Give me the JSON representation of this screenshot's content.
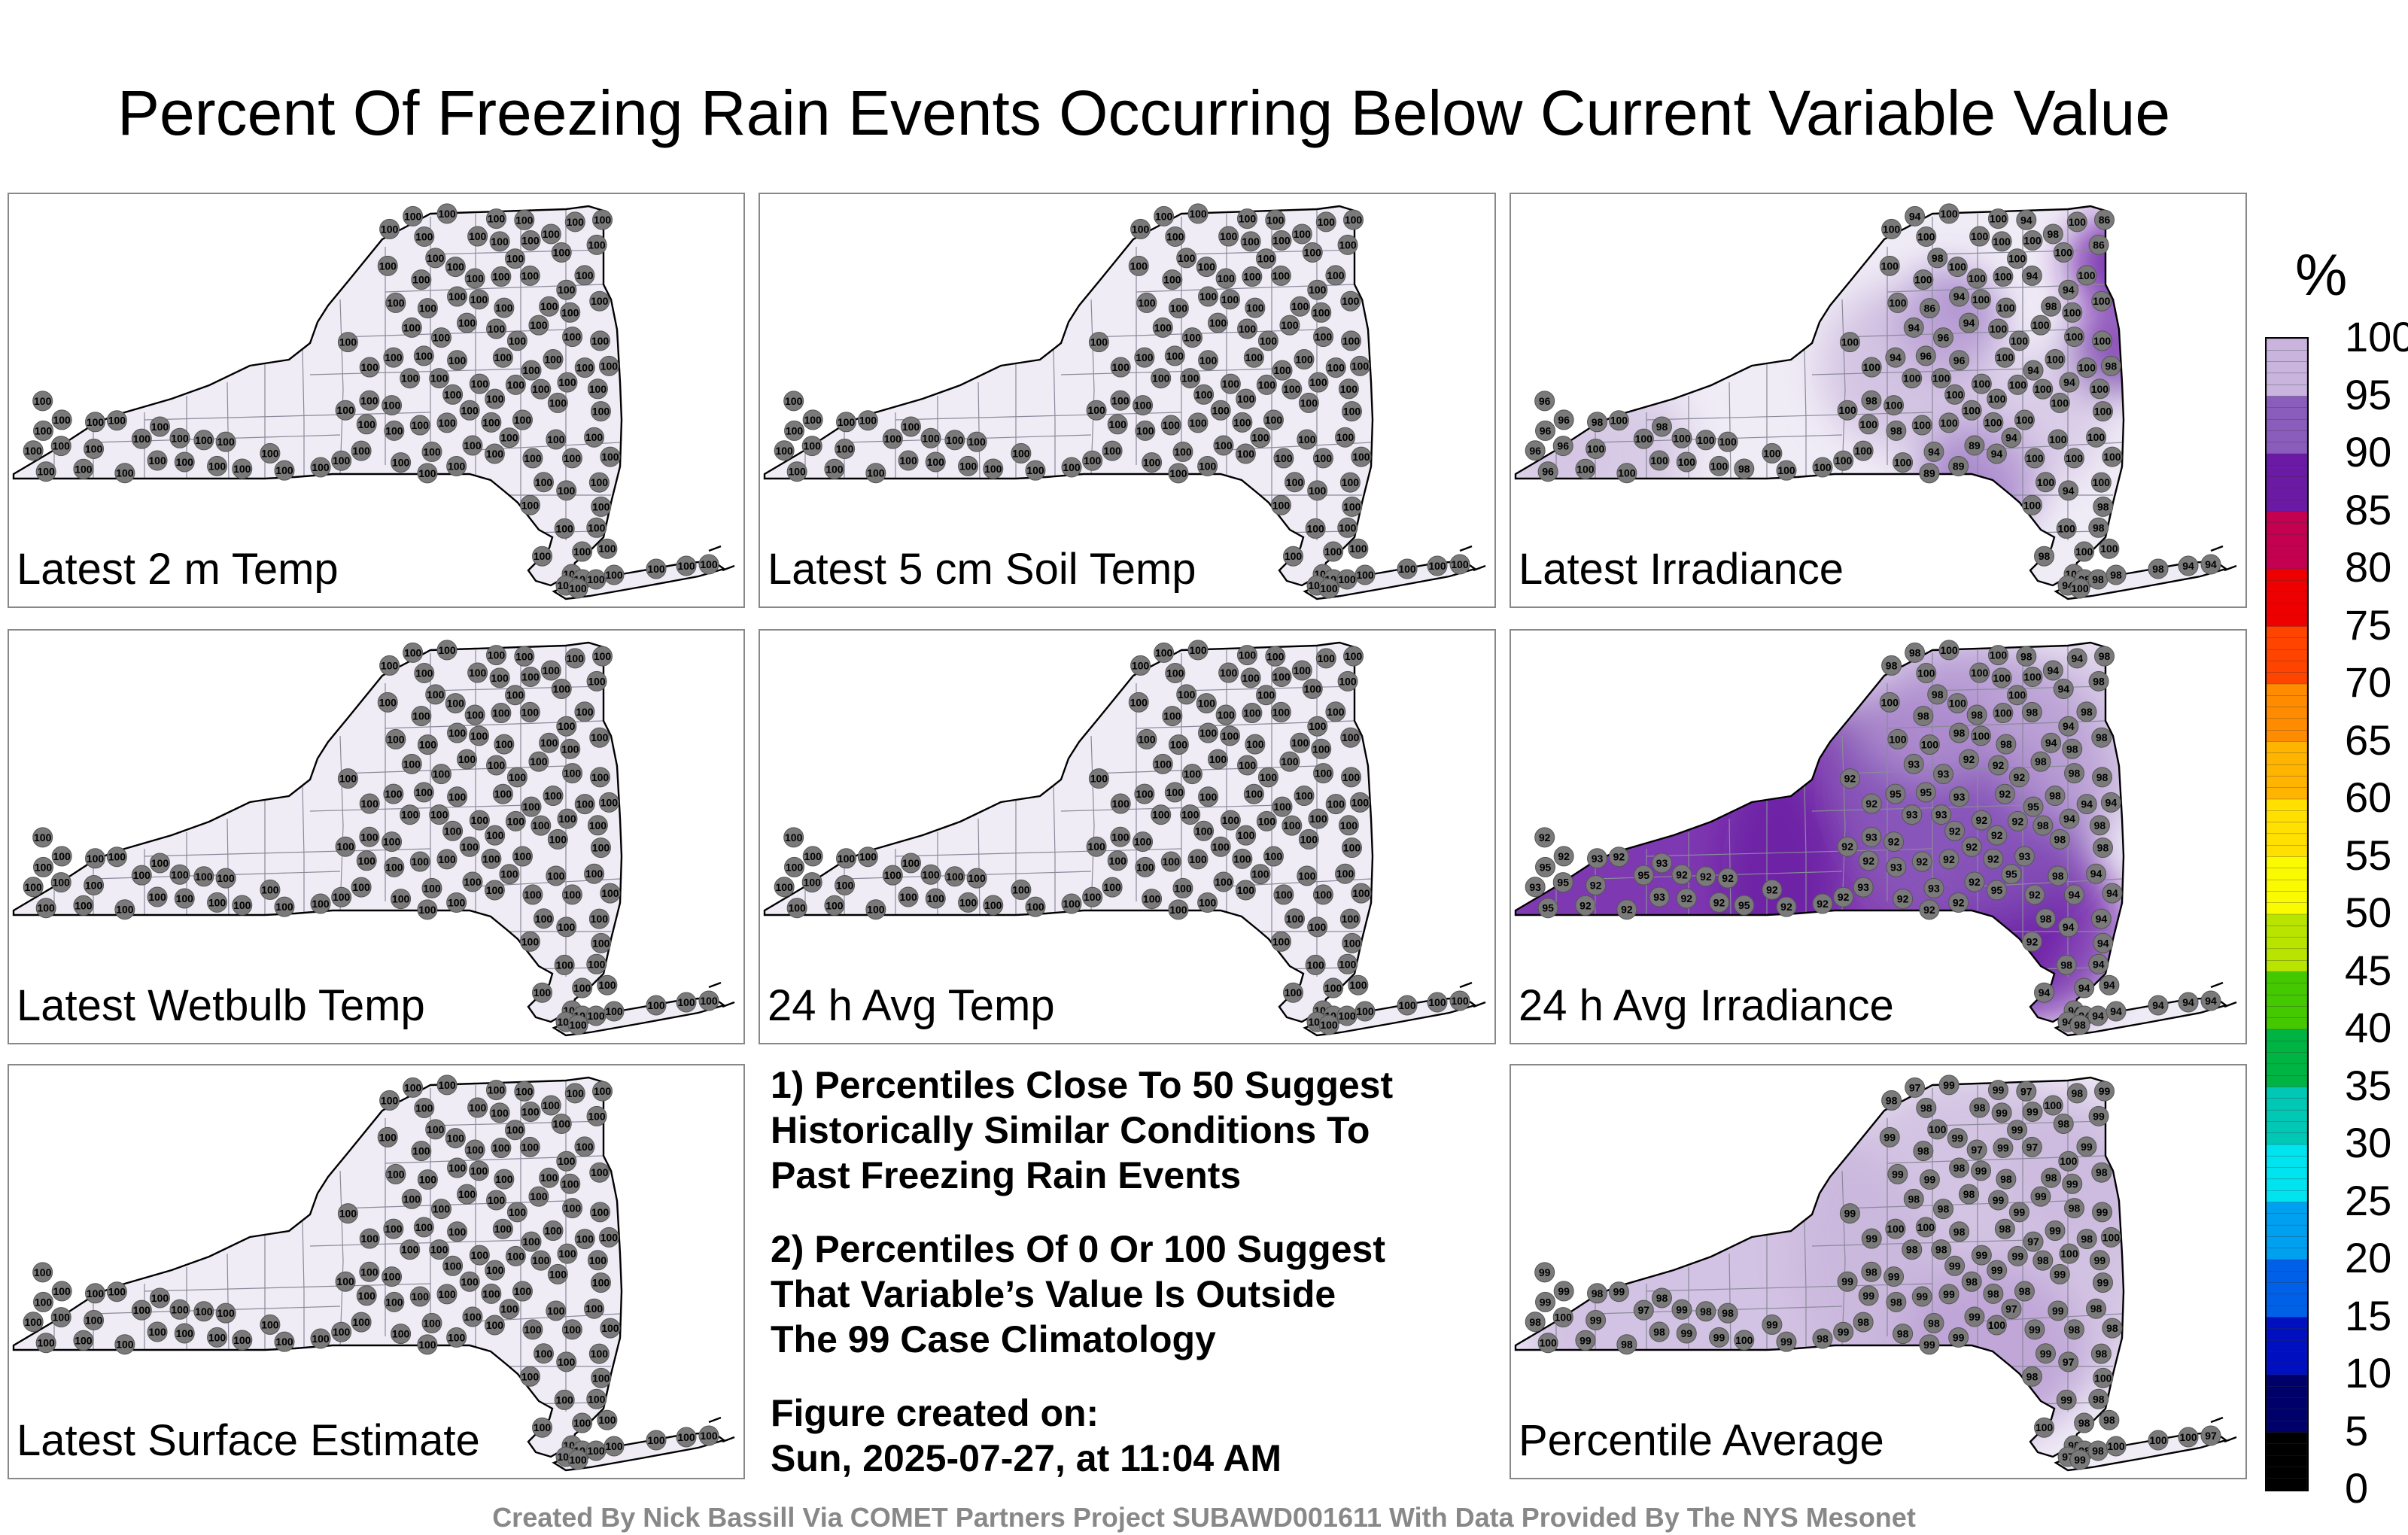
{
  "title": "Percent Of Freezing Rain Events Occurring Below Current Variable Value",
  "panels": [
    {
      "label": "Latest 2 m Temp",
      "value_style": "all100"
    },
    {
      "label": "Latest 5 cm Soil Temp",
      "value_style": "all100"
    },
    {
      "label": "Latest Irradiance",
      "value_style": "irradiance"
    },
    {
      "label": "Latest Wetbulb Temp",
      "value_style": "all100"
    },
    {
      "label": "24 h Avg Temp",
      "value_style": "all100"
    },
    {
      "label": "24 h Avg Irradiance",
      "value_style": "avgirr"
    },
    {
      "label": "Latest Surface Estimate",
      "value_style": "all100"
    },
    {
      "label": "Percentile Average",
      "value_style": "average"
    }
  ],
  "notes": {
    "note1": "1) Percentiles Close To 50 Suggest\nHistorically Similar Conditions To\nPast Freezing Rain Events",
    "note2": "2) Percentiles Of 0 Or 100 Suggest\nThat Variable’s Value Is Outside\nThe 99 Case Climatology",
    "created_label": "Figure created on:",
    "created_value": "Sun, 2025-07-27, at 11:04 AM"
  },
  "colorbar": {
    "unit": "%",
    "ticks": [
      "100",
      "95",
      "90",
      "85",
      "80",
      "75",
      "70",
      "65",
      "60",
      "55",
      "50",
      "45",
      "40",
      "35",
      "30",
      "25",
      "20",
      "15",
      "10",
      "5",
      "0"
    ],
    "colors": {
      "100": "#f0ecf6",
      "95": "#c8b4dc",
      "90": "#8a5cbc",
      "85": "#6a1aa4",
      "80": "#c40050",
      "75": "#ee0000",
      "70": "#ff4400",
      "65": "#ff8c00",
      "60": "#ffb400",
      "55": "#ffe000",
      "50": "#fafa00",
      "45": "#b8e400",
      "40": "#44c800",
      "35": "#00b444",
      "30": "#00c8b4",
      "25": "#00e4f0",
      "20": "#00a0f0",
      "15": "#0060e8",
      "10": "#0010c0",
      "5": "#00006a",
      "0": "#000000"
    }
  },
  "footer": "Created By Nick Bassill Via COMET Partners Project SUBAWD001611 With Data Provided By The NYS Mesonet"
}
